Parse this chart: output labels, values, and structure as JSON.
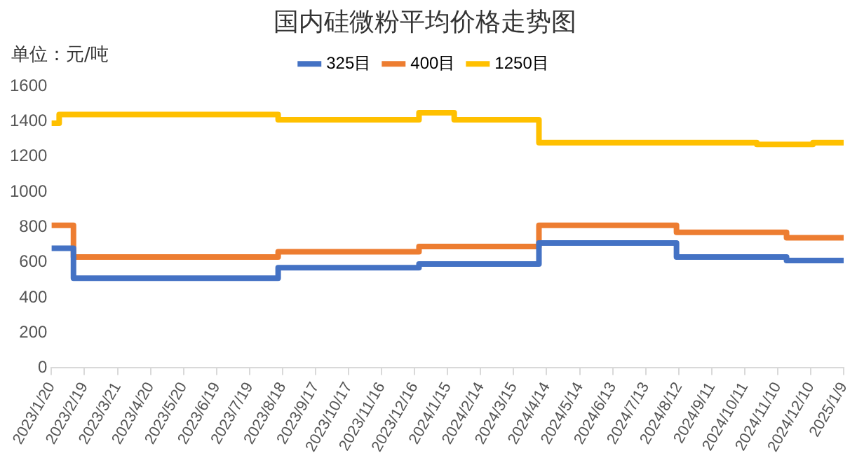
{
  "chart_data": {
    "type": "step",
    "title": "国内硅微粉平均价格走势图",
    "annotations": [
      "单位：元/吨"
    ],
    "ylim": [
      0,
      1600
    ],
    "yticks": [
      0,
      200,
      400,
      600,
      800,
      1000,
      1200,
      1400,
      1600
    ],
    "xlim": [
      "2023-01-20",
      "2025-01-09"
    ],
    "xticks": [
      {
        "value": "2023-01-20",
        "label": "2023/1/20"
      },
      {
        "value": "2023-02-19",
        "label": "2023/2/19"
      },
      {
        "value": "2023-03-21",
        "label": "2023/3/21"
      },
      {
        "value": "2023-04-20",
        "label": "2023/4/20"
      },
      {
        "value": "2023-05-20",
        "label": "2023/5/20"
      },
      {
        "value": "2023-06-19",
        "label": "2023/6/19"
      },
      {
        "value": "2023-07-19",
        "label": "2023/7/19"
      },
      {
        "value": "2023-08-18",
        "label": "2023/8/18"
      },
      {
        "value": "2023-09-17",
        "label": "2023/9/17"
      },
      {
        "value": "2023-10-17",
        "label": "2023/10/17"
      },
      {
        "value": "2023-11-16",
        "label": "2023/11/16"
      },
      {
        "value": "2023-12-16",
        "label": "2023/12/16"
      },
      {
        "value": "2024-01-15",
        "label": "2024/1/15"
      },
      {
        "value": "2024-02-14",
        "label": "2024/2/14"
      },
      {
        "value": "2024-03-15",
        "label": "2024/3/15"
      },
      {
        "value": "2024-04-14",
        "label": "2024/4/14"
      },
      {
        "value": "2024-05-14",
        "label": "2024/5/14"
      },
      {
        "value": "2024-06-13",
        "label": "2024/6/13"
      },
      {
        "value": "2024-07-13",
        "label": "2024/7/13"
      },
      {
        "value": "2024-08-12",
        "label": "2024/8/12"
      },
      {
        "value": "2024-09-11",
        "label": "2024/9/11"
      },
      {
        "value": "2024-10-11",
        "label": "2024/10/11"
      },
      {
        "value": "2024-11-10",
        "label": "2024/11/10"
      },
      {
        "value": "2024-12-10",
        "label": "2024/12/10"
      },
      {
        "value": "2025-01-09",
        "label": "2025/1/9"
      }
    ],
    "grid": false,
    "legend": "top",
    "marker": "none",
    "series": [
      {
        "name": "325目",
        "color": "#4472c4",
        "x": [
          "2023-01-20",
          "2023-02-09",
          "2023-08-14",
          "2023-12-20",
          "2024-04-07",
          "2024-08-10",
          "2024-11-18",
          "2025-01-09"
        ],
        "values": [
          680,
          510,
          570,
          590,
          710,
          630,
          610,
          610
        ]
      },
      {
        "name": "400目",
        "color": "#ed7d31",
        "x": [
          "2023-01-20",
          "2023-02-09",
          "2023-08-14",
          "2023-12-20",
          "2024-04-07",
          "2024-08-10",
          "2024-11-18",
          "2025-01-09"
        ],
        "values": [
          810,
          630,
          660,
          690,
          810,
          770,
          740,
          740
        ]
      },
      {
        "name": "1250目",
        "color": "#ffc000",
        "x": [
          "2023-01-20",
          "2023-01-27",
          "2023-08-14",
          "2023-12-20",
          "2024-01-21",
          "2024-04-07",
          "2024-10-22",
          "2024-12-12",
          "2025-01-09"
        ],
        "values": [
          1390,
          1440,
          1410,
          1450,
          1410,
          1280,
          1270,
          1280,
          1280
        ]
      }
    ]
  }
}
